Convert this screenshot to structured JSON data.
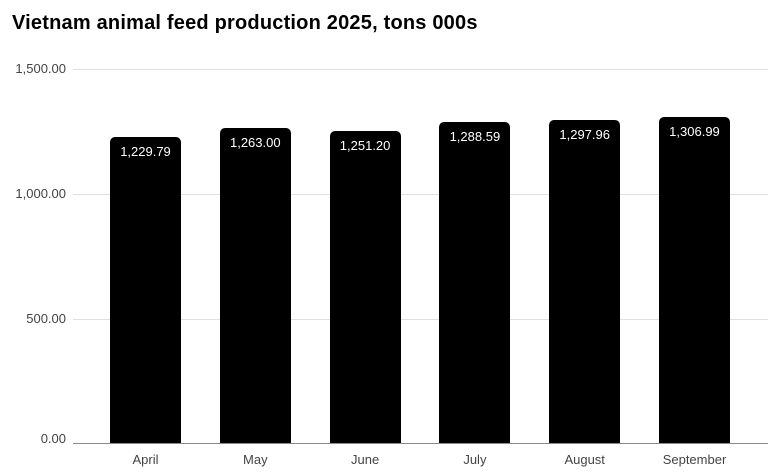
{
  "title": "Vietnam animal feed production 2025, tons 000s",
  "chart_data": {
    "type": "bar",
    "title": "Vietnam animal feed production 2025, tons 000s",
    "categories": [
      "April",
      "May",
      "June",
      "July",
      "August",
      "September"
    ],
    "values": [
      1229.79,
      1263.0,
      1251.2,
      1288.59,
      1297.96,
      1306.99
    ],
    "value_labels": [
      "1,229.79",
      "1,263.00",
      "1,251.20",
      "1,288.59",
      "1,297.96",
      "1,306.99"
    ],
    "xlabel": "",
    "ylabel": "",
    "ylim": [
      0,
      1500
    ],
    "yticks": [
      "0.00",
      "500.00",
      "1,000.00",
      "1,500.00"
    ],
    "grid": true,
    "legend_position": "none",
    "bar_color": "#000000",
    "annotation_color": "#ffffff"
  },
  "style": {
    "background": "#ffffff",
    "tick_label_color": "#444444",
    "gridline_color": "#e0e0e0",
    "baseline_color": "#8a8a8a",
    "title_color": "#000000"
  }
}
